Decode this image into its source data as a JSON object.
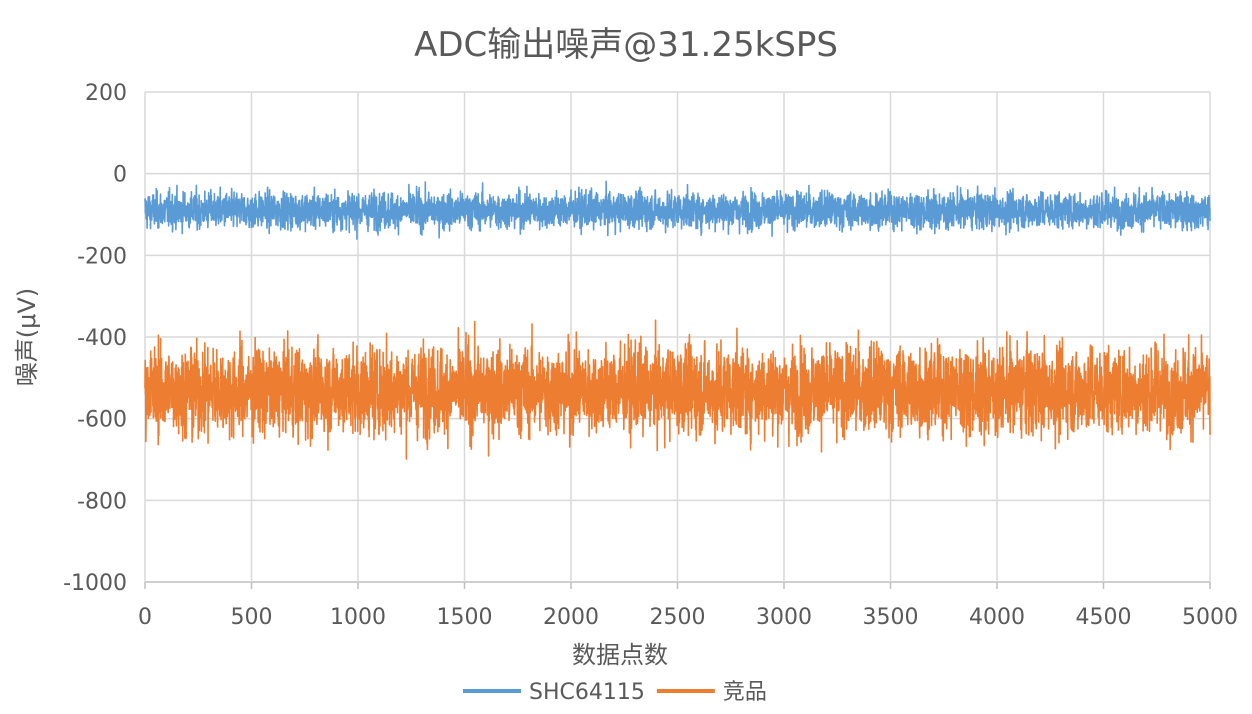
{
  "chart_data": {
    "type": "line",
    "title": "ADC输出噪声@31.25kSPS",
    "xlabel": "数据点数",
    "ylabel": "噪声(μV)",
    "xlim": [
      0,
      5000
    ],
    "ylim": [
      -1000,
      200
    ],
    "x_ticks": [
      "0",
      "500",
      "1000",
      "1500",
      "2000",
      "2500",
      "3000",
      "3500",
      "4000",
      "4500",
      "5000"
    ],
    "y_ticks": [
      "200",
      "0",
      "-200",
      "-400",
      "-600",
      "-800",
      "-1000"
    ],
    "grid": true,
    "legend_position": "bottom",
    "series": [
      {
        "name": "SHC64115",
        "color": "#5b9bd5",
        "mean": -90,
        "noise_range": [
          -205,
          30
        ]
      },
      {
        "name": "竞品",
        "color": "#ed7d31",
        "mean": -530,
        "noise_range": [
          -790,
          -225
        ]
      }
    ]
  }
}
